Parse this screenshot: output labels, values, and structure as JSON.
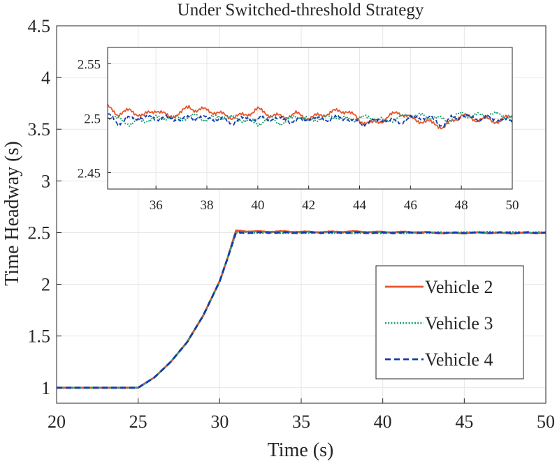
{
  "chart_data": [
    {
      "type": "line",
      "role": "main",
      "title": "Under Switched-threshold Strategy",
      "xlabel": "Time (s)",
      "ylabel": "Time Headway (s)",
      "xlim": [
        20,
        50
      ],
      "ylim": [
        0.85,
        4.5
      ],
      "xticks": [
        20,
        25,
        30,
        35,
        40,
        45,
        50
      ],
      "xtick_labels": [
        "20",
        "25",
        "30",
        "35",
        "40",
        "45",
        "50"
      ],
      "yticks": [
        1,
        1.5,
        2,
        2.5,
        3,
        3.5,
        4,
        4.5
      ],
      "ytick_labels": [
        "1",
        "1.5",
        "2",
        "2.5",
        "3",
        "3.5",
        "4",
        "4.5"
      ],
      "grid": true,
      "legend_position": "lower-right",
      "series": [
        {
          "name": "Vehicle 2",
          "color": "#E8552B",
          "style": "solid",
          "x": [
            20,
            25,
            26,
            27,
            28,
            29,
            30,
            30.5,
            31,
            32,
            34,
            36,
            38,
            40,
            42,
            44,
            46,
            48,
            50
          ],
          "y": [
            1.0,
            1.0,
            1.1,
            1.25,
            1.44,
            1.7,
            2.03,
            2.26,
            2.52,
            2.51,
            2.51,
            2.505,
            2.51,
            2.505,
            2.505,
            2.495,
            2.5,
            2.495,
            2.5
          ]
        },
        {
          "name": "Vehicle 3",
          "color": "#1FA072",
          "style": "dotted",
          "x": [
            20,
            25,
            26,
            27,
            28,
            29,
            30,
            30.5,
            31,
            32,
            34,
            36,
            38,
            40,
            42,
            44,
            46,
            48,
            50
          ],
          "y": [
            1.0,
            1.0,
            1.1,
            1.25,
            1.44,
            1.7,
            2.03,
            2.26,
            2.5,
            2.5,
            2.5,
            2.5,
            2.498,
            2.497,
            2.5,
            2.5,
            2.503,
            2.502,
            2.5
          ]
        },
        {
          "name": "Vehicle 4",
          "color": "#0F3EAE",
          "style": "dashed",
          "x": [
            20,
            25,
            26,
            27,
            28,
            29,
            30,
            30.5,
            31,
            32,
            34,
            36,
            38,
            40,
            42,
            44,
            46,
            48,
            50
          ],
          "y": [
            1.0,
            1.0,
            1.1,
            1.25,
            1.44,
            1.7,
            2.03,
            2.26,
            2.5,
            2.5,
            2.5,
            2.5,
            2.5,
            2.498,
            2.5,
            2.498,
            2.5,
            2.5,
            2.5
          ]
        }
      ]
    },
    {
      "type": "line",
      "role": "inset",
      "title": "",
      "xlabel": "",
      "ylabel": "",
      "xlim": [
        34.1,
        50
      ],
      "ylim": [
        2.435,
        2.565
      ],
      "xticks": [
        36,
        38,
        40,
        42,
        44,
        46,
        48,
        50
      ],
      "xtick_labels": [
        "36",
        "38",
        "40",
        "42",
        "44",
        "46",
        "48",
        "50"
      ],
      "yticks": [
        2.45,
        2.5,
        2.55
      ],
      "ytick_labels": [
        "2.45",
        "2.5",
        "2.55"
      ],
      "grid": true,
      "series": [
        {
          "name": "Vehicle 2",
          "color": "#E8552B",
          "style": "solid",
          "x": [
            34.1,
            34.5,
            35,
            35.5,
            36,
            36.5,
            37,
            37.3,
            37.6,
            38,
            38.5,
            39,
            39.5,
            40,
            40.5,
            41,
            41.5,
            42,
            42.5,
            43,
            43.5,
            44,
            44.5,
            45,
            45.5,
            46,
            46.5,
            47,
            47.3,
            47.6,
            48,
            48.5,
            49,
            49.5,
            50
          ],
          "y": [
            2.51,
            2.504,
            2.507,
            2.502,
            2.508,
            2.501,
            2.505,
            2.511,
            2.507,
            2.508,
            2.504,
            2.501,
            2.503,
            2.508,
            2.503,
            2.501,
            2.504,
            2.5,
            2.503,
            2.506,
            2.507,
            2.498,
            2.495,
            2.499,
            2.506,
            2.5,
            2.497,
            2.495,
            2.491,
            2.497,
            2.503,
            2.499,
            2.499,
            2.497,
            2.503
          ]
        },
        {
          "name": "Vehicle 3",
          "color": "#1FA072",
          "style": "dotted",
          "x": [
            34.1,
            34.5,
            35,
            35.5,
            36,
            36.5,
            37,
            37.5,
            38,
            38.5,
            39,
            39.5,
            40,
            40.5,
            41,
            41.5,
            42,
            42.5,
            43,
            43.5,
            44,
            44.5,
            45,
            45.5,
            46,
            46.5,
            47,
            47.5,
            48,
            48.5,
            49,
            49.5,
            50
          ],
          "y": [
            2.502,
            2.499,
            2.495,
            2.498,
            2.5,
            2.501,
            2.5,
            2.502,
            2.499,
            2.502,
            2.5,
            2.498,
            2.495,
            2.5,
            2.495,
            2.503,
            2.498,
            2.5,
            2.502,
            2.499,
            2.5,
            2.501,
            2.497,
            2.5,
            2.503,
            2.502,
            2.5,
            2.498,
            2.504,
            2.502,
            2.504,
            2.503,
            2.501
          ]
        },
        {
          "name": "Vehicle 4",
          "color": "#0F3EAE",
          "style": "dashed",
          "x": [
            34.1,
            34.5,
            35,
            35.5,
            36,
            36.5,
            37,
            37.5,
            38,
            38.5,
            39,
            39.5,
            40,
            40.5,
            41,
            41.5,
            42,
            42.5,
            43,
            43.5,
            44,
            44.5,
            45,
            45.5,
            46,
            46.5,
            47,
            47.3,
            47.6,
            48,
            48.5,
            49,
            49.5,
            50
          ],
          "y": [
            2.503,
            2.496,
            2.5,
            2.501,
            2.5,
            2.5,
            2.499,
            2.501,
            2.5,
            2.499,
            2.496,
            2.5,
            2.499,
            2.5,
            2.499,
            2.497,
            2.5,
            2.499,
            2.5,
            2.5,
            2.495,
            2.497,
            2.499,
            2.496,
            2.5,
            2.501,
            2.498,
            2.493,
            2.5,
            2.502,
            2.5,
            2.5,
            2.499,
            2.497
          ]
        }
      ]
    }
  ]
}
